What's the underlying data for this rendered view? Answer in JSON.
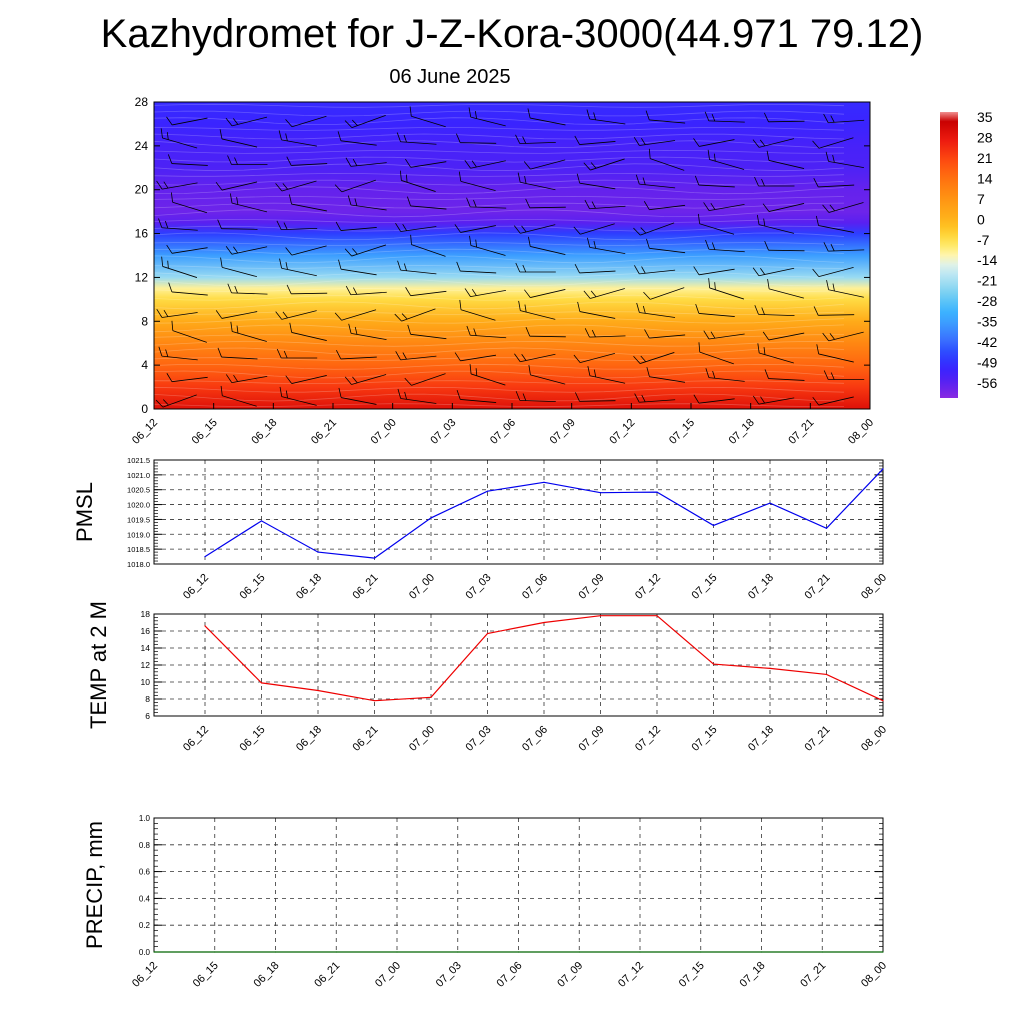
{
  "title": "Kazhydromet for J-Z-Kora-3000(44.971 79.12)",
  "subtitle": "06 June 2025",
  "colors": {
    "pmsl_line": "#0000ee",
    "temp_line": "#ee0000",
    "precip_line": "#006400"
  },
  "chart_data": [
    {
      "type": "heatmap",
      "name": "vertical-temperature-wind",
      "x_ticks": [
        "06_12",
        "06_15",
        "06_18",
        "06_21",
        "07_00",
        "07_03",
        "07_06",
        "07_09",
        "07_12",
        "07_15",
        "07_18",
        "07_21",
        "08_00"
      ],
      "y_ticks": [
        0,
        4,
        8,
        12,
        16,
        20,
        24,
        28
      ],
      "ylim": [
        0,
        28
      ],
      "colorbar_labels": [
        35,
        28,
        21,
        14,
        7,
        0,
        -7,
        -14,
        -21,
        -28,
        -35,
        -42,
        -49,
        -56
      ],
      "colorbar_range": [
        -60,
        38
      ],
      "temperature_profile": {
        "levels": [
          0,
          2,
          4,
          6,
          8,
          10,
          11,
          12,
          14,
          16,
          17,
          18,
          20,
          22,
          24,
          26,
          28
        ],
        "values": [
          31,
          24,
          17,
          11,
          3,
          -5,
          -10,
          -21,
          -34,
          -46,
          -55,
          -57,
          -56,
          -53,
          -52,
          -50,
          -49
        ]
      },
      "wind_barbs": "present"
    },
    {
      "type": "line",
      "name": "PMSL",
      "ylabel": "PMSL",
      "categories": [
        "06_12",
        "06_15",
        "06_18",
        "06_21",
        "07_00",
        "07_03",
        "07_06",
        "07_09",
        "07_12",
        "07_15",
        "07_18",
        "07_21",
        "08_00"
      ],
      "values": [
        1018.25,
        1019.45,
        1018.4,
        1018.2,
        1019.55,
        1020.45,
        1020.75,
        1020.4,
        1020.42,
        1019.3,
        1020.05,
        1019.2,
        1021.2
      ],
      "ylim": [
        1018.0,
        1021.5
      ],
      "y_ticks": [
        "1018.0",
        "1018.5",
        "1019.0",
        "1019.5",
        "1020.0",
        "1020.5",
        "1021.0",
        "1021.5"
      ],
      "grid": true
    },
    {
      "type": "line",
      "name": "TEMP at 2 M",
      "ylabel": "TEMP at 2 M",
      "categories": [
        "06_12",
        "06_15",
        "06_18",
        "06_21",
        "07_00",
        "07_03",
        "07_06",
        "07_09",
        "07_12",
        "07_15",
        "07_18",
        "07_21",
        "08_00"
      ],
      "values": [
        16.6,
        9.9,
        9.0,
        7.8,
        8.2,
        15.7,
        17.0,
        17.8,
        17.8,
        12.1,
        11.6,
        10.9,
        7.8
      ],
      "ylim": [
        6,
        18
      ],
      "y_ticks": [
        "6",
        "8",
        "10",
        "12",
        "14",
        "16",
        "18"
      ],
      "grid": true
    },
    {
      "type": "line",
      "name": "PRECIP, mm",
      "ylabel": "PRECIP, mm",
      "categories": [
        "06_12",
        "06_15",
        "06_18",
        "06_21",
        "07_00",
        "07_03",
        "07_06",
        "07_09",
        "07_12",
        "07_15",
        "07_18",
        "07_21",
        "08_00"
      ],
      "values": [
        0,
        0,
        0,
        0,
        0,
        0,
        0,
        0,
        0,
        0,
        0,
        0,
        0
      ],
      "ylim": [
        0,
        1
      ],
      "y_ticks": [
        "0.0",
        "0.2",
        "0.4",
        "0.6",
        "0.8",
        "1.0"
      ],
      "grid": true
    }
  ]
}
